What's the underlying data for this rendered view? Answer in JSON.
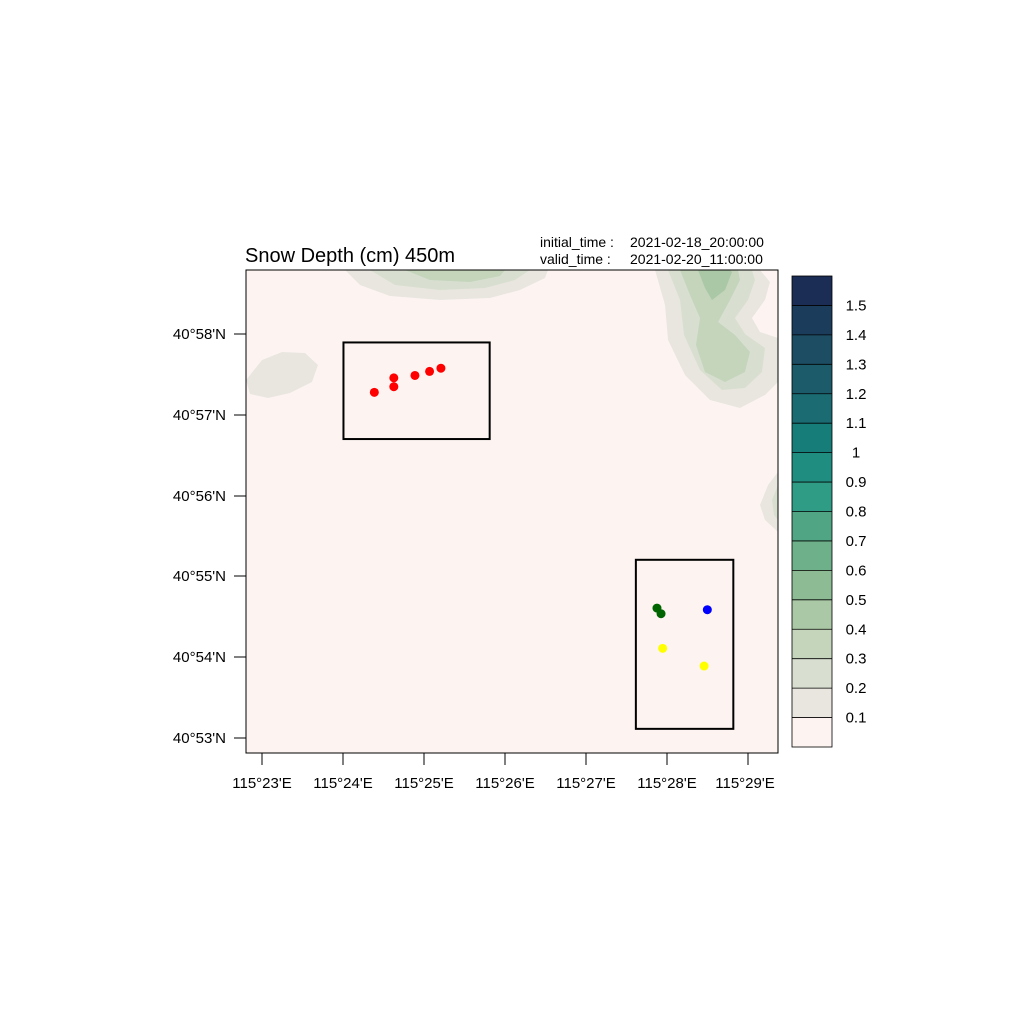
{
  "title": "Snow Depth (cm) 450m",
  "initial_time_label": "initial_time :",
  "initial_time_value": "2021-02-18_20:00:00",
  "valid_time_label": "valid_time  :",
  "valid_time_value": "2021-02-20_11:00:00",
  "x_ticks": [
    "115°23'E",
    "115°24'E",
    "115°25'E",
    "115°26'E",
    "115°27'E",
    "115°28'E",
    "115°29'E"
  ],
  "y_ticks": [
    "40°58'N",
    "40°57'N",
    "40°56'N",
    "40°55'N",
    "40°54'N",
    "40°53'N"
  ],
  "colorbar_labels": [
    "1.5",
    "1.4",
    "1.3",
    "1.2",
    "1.1",
    "1",
    "0.9",
    "0.8",
    "0.7",
    "0.6",
    "0.5",
    "0.4",
    "0.3",
    "0.2",
    "0.1"
  ],
  "colorbar_colors": [
    "#1b2d55",
    "#1c3c5c",
    "#1d4d63",
    "#1c5c6a",
    "#1a6c72",
    "#177d78",
    "#1f8e80",
    "#2f9c86",
    "#50a684",
    "#6eb08a",
    "#8dbb93",
    "#aac8a5",
    "#c4d5bc",
    "#d8dfd0",
    "#e9e6e0",
    "#fdf4f1"
  ],
  "colors": {
    "background_field": "#fdf4f1",
    "red_points": "#ff0000",
    "green_points": "#006400",
    "blue_points": "#0000ff",
    "yellow_points": "#ffff00"
  },
  "map_data": {
    "lon_range_arcmin": [
      22.8,
      29.35
    ],
    "lat_range_arcmin": [
      52.8,
      58.8
    ],
    "boxes": [
      {
        "lon": [
          24.0,
          25.8
        ],
        "lat": [
          56.7,
          57.9
        ]
      },
      {
        "lon": [
          27.6,
          28.8
        ],
        "lat": [
          53.1,
          55.2
        ]
      }
    ],
    "points": {
      "red": [
        [
          24.38,
          57.28
        ],
        [
          24.62,
          57.35
        ],
        [
          24.62,
          57.46
        ],
        [
          24.88,
          57.49
        ],
        [
          25.06,
          57.54
        ],
        [
          25.2,
          57.58
        ]
      ],
      "green": [
        [
          27.86,
          54.6
        ],
        [
          27.91,
          54.53
        ]
      ],
      "blue": [
        [
          28.48,
          54.58
        ]
      ],
      "yellow": [
        [
          27.93,
          54.1
        ],
        [
          28.44,
          53.88
        ]
      ]
    }
  }
}
